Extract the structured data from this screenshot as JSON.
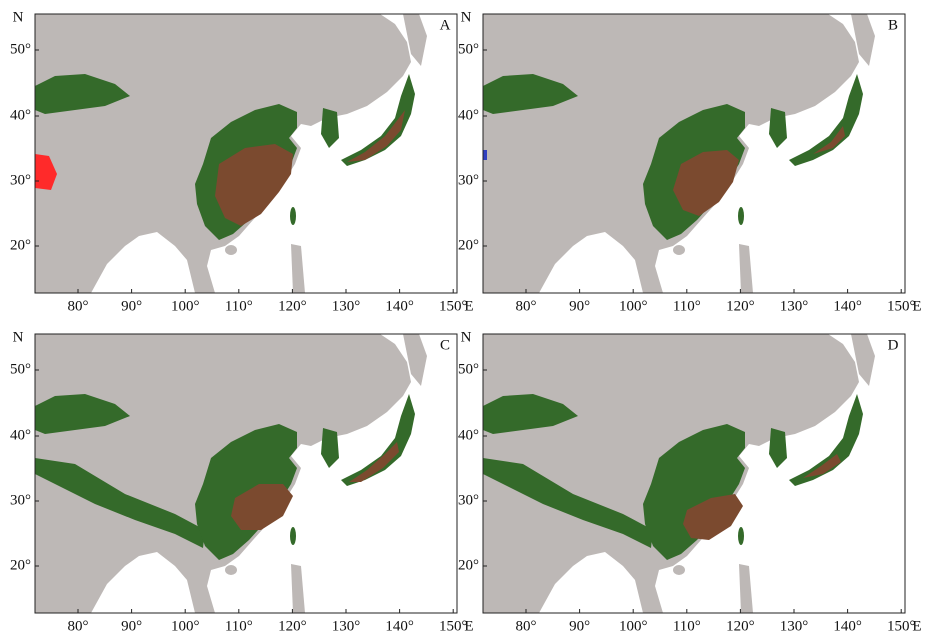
{
  "panels": [
    {
      "label": "A",
      "y_axis": "N",
      "x_axis": "E",
      "yticks": [
        "50°",
        "40°",
        "30°",
        "20°"
      ],
      "xticks": [
        "80°",
        "90°",
        "100°",
        "110°",
        "120°",
        "130°",
        "140°",
        "150°"
      ]
    },
    {
      "label": "B",
      "y_axis": "N",
      "x_axis": "E",
      "yticks": [
        "50°",
        "40°",
        "30°",
        "20°"
      ],
      "xticks": [
        "80°",
        "90°",
        "100°",
        "110°",
        "120°",
        "130°",
        "140°",
        "150°"
      ]
    },
    {
      "label": "C",
      "y_axis": "N",
      "x_axis": "E",
      "yticks": [
        "50°",
        "40°",
        "30°",
        "20°"
      ],
      "xticks": [
        "80°",
        "90°",
        "100°",
        "110°",
        "120°",
        "130°",
        "140°",
        "150°"
      ]
    },
    {
      "label": "D",
      "y_axis": "N",
      "x_axis": "E",
      "yticks": [
        "50°",
        "40°",
        "30°",
        "20°"
      ],
      "xticks": [
        "80°",
        "90°",
        "100°",
        "110°",
        "120°",
        "130°",
        "140°",
        "150°"
      ]
    }
  ]
}
